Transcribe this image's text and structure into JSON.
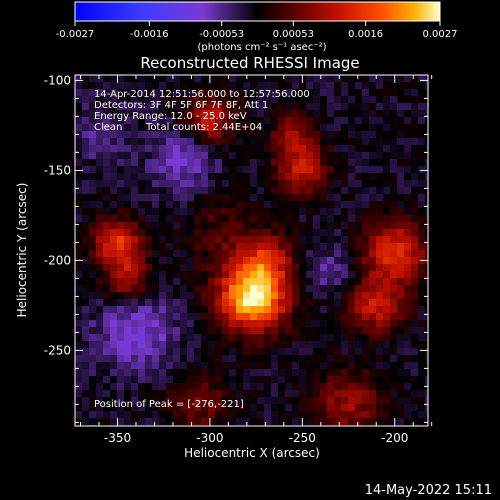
{
  "chart_data": {
    "type": "heatmap",
    "title": "Reconstructed RHESSI Image",
    "xlabel": "Heliocentric X (arcsec)",
    "ylabel": "Heliocentric Y (arcsec)",
    "xlim": [
      -373,
      -182
    ],
    "ylim": [
      -292,
      -97
    ],
    "xticks": [
      -350,
      -300,
      -250,
      -200
    ],
    "xtick_labels": [
      "-350",
      "-300",
      "-250",
      "-200"
    ],
    "yticks": [
      -100,
      -150,
      -200,
      -250
    ],
    "ytick_labels": [
      "-100",
      "-150",
      "-200",
      "-250"
    ],
    "colorbar": {
      "ticks": [
        -0.0027,
        -0.0016,
        -0.00053,
        0.00053,
        0.0016,
        0.0027
      ],
      "tick_labels": [
        "-0.0027",
        "-0.0016",
        "-0.00053",
        "0.00053",
        "0.0016",
        "0.0027"
      ],
      "unit_label": "(photons cm⁻² s⁻¹ asec⁻²)",
      "range": [
        -0.0027,
        0.0027
      ]
    },
    "annotations": {
      "line1": "14-Apr-2014 12:51:56.000 to 12:57:56.000",
      "line2": "Detectors: 3F 4F 5F 6F 7F 8F, Att 1",
      "line3": "Energy Range: 12.0 - 25.0 keV",
      "line4_a": "Clean",
      "line4_b": "Total counts: 2.44E+04",
      "peak": "Position of Peak = [-276,-221]"
    },
    "footer": "14-May-2022 15:11",
    "sources": [
      {
        "x": -277,
        "y": -221,
        "amp": 0.0027,
        "sigma": 13
      },
      {
        "x": -270,
        "y": -200,
        "amp": 0.0012,
        "sigma": 11
      },
      {
        "x": -350,
        "y": -190,
        "amp": 0.0016,
        "sigma": 9
      },
      {
        "x": -345,
        "y": -210,
        "amp": 0.0011,
        "sigma": 9
      },
      {
        "x": -300,
        "y": -122,
        "amp": 0.0013,
        "sigma": 9
      },
      {
        "x": -250,
        "y": -150,
        "amp": 0.0013,
        "sigma": 10
      },
      {
        "x": -255,
        "y": -130,
        "amp": 0.001,
        "sigma": 8
      },
      {
        "x": -200,
        "y": -195,
        "amp": 0.0016,
        "sigma": 12
      },
      {
        "x": -210,
        "y": -225,
        "amp": 0.0013,
        "sigma": 11
      },
      {
        "x": -225,
        "y": -280,
        "amp": 0.001,
        "sigma": 13
      },
      {
        "x": -305,
        "y": -280,
        "amp": 0.0007,
        "sigma": 12
      },
      {
        "x": -340,
        "y": -240,
        "amp": -0.0008,
        "sigma": 15
      },
      {
        "x": -315,
        "y": -145,
        "amp": -0.0007,
        "sigma": 12
      },
      {
        "x": -360,
        "y": -130,
        "amp": -0.0004,
        "sigma": 12
      },
      {
        "x": -235,
        "y": -205,
        "amp": -0.0005,
        "sigma": 10
      },
      {
        "x": -295,
        "y": -185,
        "amp": 0.0005,
        "sigma": 14
      }
    ]
  }
}
